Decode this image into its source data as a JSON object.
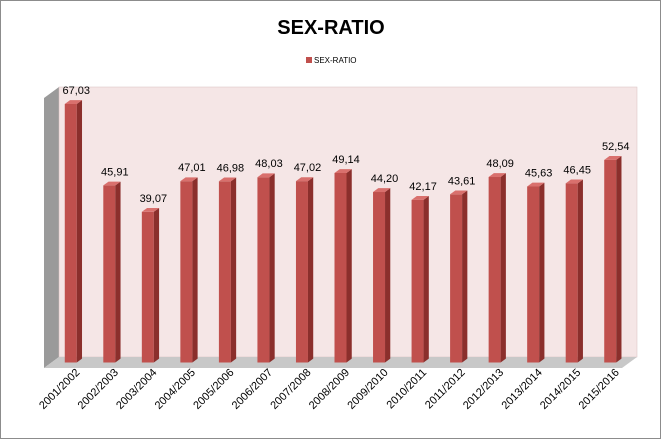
{
  "chart_data": {
    "type": "bar",
    "title": "SEX-RATIO",
    "categories": [
      "2001/2002",
      "2002/2003",
      "2003/2004",
      "2004/2005",
      "2005/2006",
      "2006/2007",
      "2007/2008",
      "2008/2009",
      "2009/2010",
      "2010/2011",
      "2011/2012",
      "2012/2013",
      "2013/2014",
      "2014/2015",
      "2015/2016"
    ],
    "series": [
      {
        "name": "SEX-RATIO",
        "values": [
          67.03,
          45.91,
          39.07,
          47.01,
          46.98,
          48.03,
          47.02,
          49.14,
          44.2,
          42.17,
          43.61,
          48.09,
          45.63,
          46.45,
          52.54
        ],
        "labels": [
          "67,03",
          "45,91",
          "39,07",
          "47,01",
          "46,98",
          "48,03",
          "47,02",
          "49,14",
          "44,20",
          "42,17",
          "43,61",
          "48,09",
          "45,63",
          "46,45",
          "52,54"
        ]
      }
    ],
    "ylim": [
      0,
      70
    ],
    "grid": false,
    "legend": "top-center",
    "colors": {
      "bar_front": "#c0504d",
      "bar_side": "#8b2f2c",
      "bar_top": "#d9706d",
      "wall": "#f5e6e6",
      "floor": "#c8c8c8",
      "side_wall": "#9a9a9a"
    }
  }
}
